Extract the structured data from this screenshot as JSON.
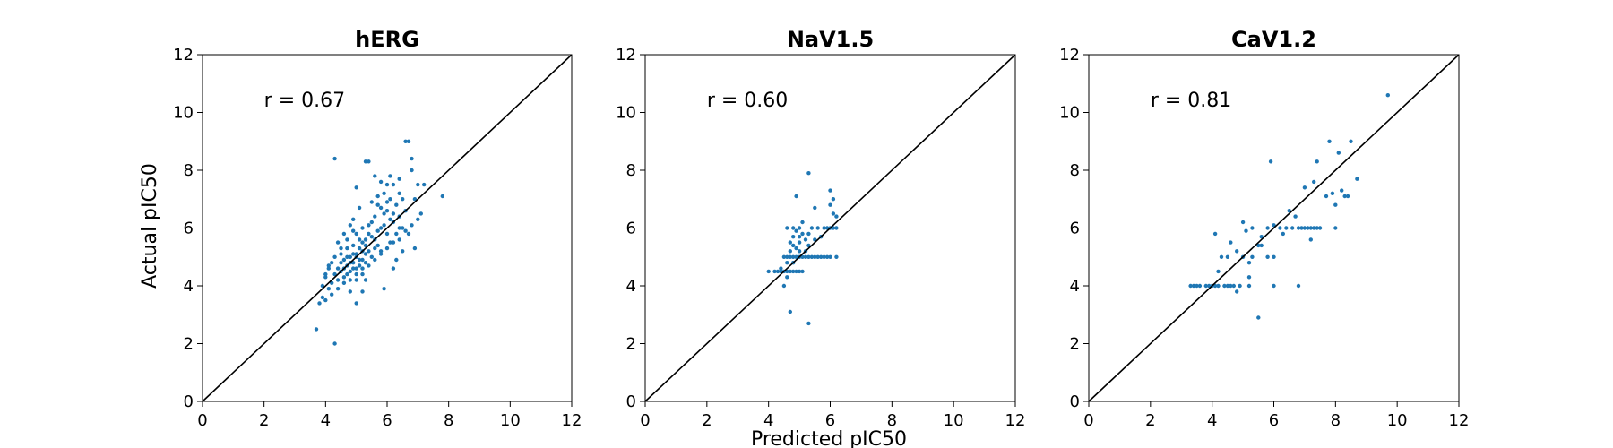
{
  "chart_data": {
    "type": "scatter",
    "shared": {
      "xlabel": "Predicted pIC50",
      "ylabel": "Actual pIC50",
      "xlim": [
        0,
        12
      ],
      "ylim": [
        0,
        12
      ],
      "xticks": [
        0,
        2,
        4,
        6,
        8,
        10,
        12
      ],
      "yticks": [
        0,
        2,
        4,
        6,
        8,
        10,
        12
      ],
      "point_color": "#1f77b4",
      "line_color": "#000000",
      "grid": false,
      "identity_line": true
    },
    "panels": [
      {
        "title": "hERG",
        "annotation": "r = 0.67",
        "annotation_pos": [
          2,
          10.2
        ],
        "points": [
          [
            3.7,
            2.5
          ],
          [
            4.3,
            2.0
          ],
          [
            4.3,
            8.4
          ],
          [
            3.8,
            3.4
          ],
          [
            3.9,
            3.6
          ],
          [
            4.0,
            3.5
          ],
          [
            4.1,
            3.9
          ],
          [
            4.0,
            4.3
          ],
          [
            4.2,
            4.1
          ],
          [
            4.1,
            4.6
          ],
          [
            4.3,
            4.4
          ],
          [
            4.4,
            4.6
          ],
          [
            4.2,
            4.8
          ],
          [
            4.5,
            4.5
          ],
          [
            4.4,
            4.2
          ],
          [
            4.6,
            4.9
          ],
          [
            4.5,
            5.1
          ],
          [
            4.6,
            4.3
          ],
          [
            4.7,
            4.7
          ],
          [
            4.7,
            5.3
          ],
          [
            4.8,
            4.5
          ],
          [
            4.8,
            5.0
          ],
          [
            4.9,
            4.8
          ],
          [
            4.9,
            5.4
          ],
          [
            5.0,
            4.6
          ],
          [
            5.0,
            5.1
          ],
          [
            5.1,
            5.6
          ],
          [
            5.1,
            4.9
          ],
          [
            5.2,
            5.2
          ],
          [
            5.2,
            6.0
          ],
          [
            5.3,
            5.4
          ],
          [
            5.3,
            4.8
          ],
          [
            5.4,
            5.8
          ],
          [
            5.4,
            5.2
          ],
          [
            5.5,
            6.2
          ],
          [
            5.5,
            5.0
          ],
          [
            5.6,
            5.6
          ],
          [
            5.6,
            6.4
          ],
          [
            5.7,
            5.4
          ],
          [
            5.7,
            6.8
          ],
          [
            5.8,
            6.0
          ],
          [
            5.8,
            5.2
          ],
          [
            5.9,
            6.5
          ],
          [
            5.9,
            7.2
          ],
          [
            6.0,
            5.8
          ],
          [
            6.0,
            6.6
          ],
          [
            6.1,
            7.0
          ],
          [
            6.1,
            5.5
          ],
          [
            6.2,
            6.2
          ],
          [
            6.2,
            7.5
          ],
          [
            6.3,
            6.8
          ],
          [
            6.3,
            5.8
          ],
          [
            6.4,
            7.7
          ],
          [
            6.4,
            6.4
          ],
          [
            6.5,
            7.0
          ],
          [
            6.5,
            6.0
          ],
          [
            6.6,
            9.0
          ],
          [
            6.7,
            9.0
          ],
          [
            6.8,
            8.4
          ],
          [
            6.8,
            8.0
          ],
          [
            6.9,
            7.0
          ],
          [
            6.9,
            5.3
          ],
          [
            7.0,
            7.5
          ],
          [
            7.1,
            6.5
          ],
          [
            7.2,
            7.5
          ],
          [
            7.8,
            7.1
          ],
          [
            4.4,
            5.5
          ],
          [
            4.6,
            5.8
          ],
          [
            4.8,
            6.1
          ],
          [
            4.9,
            6.3
          ],
          [
            5.0,
            3.4
          ],
          [
            5.2,
            3.8
          ],
          [
            5.3,
            4.2
          ],
          [
            5.0,
            7.4
          ],
          [
            5.3,
            8.3
          ],
          [
            5.4,
            8.3
          ],
          [
            5.6,
            7.8
          ],
          [
            5.8,
            7.6
          ],
          [
            6.0,
            7.5
          ],
          [
            5.9,
            3.9
          ],
          [
            6.2,
            4.6
          ],
          [
            6.3,
            4.9
          ],
          [
            6.5,
            5.2
          ],
          [
            6.7,
            5.8
          ],
          [
            6.6,
            6.6
          ],
          [
            6.4,
            7.2
          ],
          [
            6.1,
            7.8
          ],
          [
            5.7,
            7.1
          ],
          [
            5.5,
            6.9
          ],
          [
            5.1,
            6.7
          ],
          [
            4.9,
            5.9
          ],
          [
            4.7,
            5.6
          ],
          [
            4.5,
            5.3
          ],
          [
            4.3,
            5.0
          ],
          [
            4.1,
            4.7
          ],
          [
            4.0,
            4.4
          ],
          [
            3.9,
            4.0
          ],
          [
            4.2,
            3.7
          ],
          [
            4.4,
            3.9
          ],
          [
            4.6,
            4.1
          ],
          [
            4.8,
            4.2
          ],
          [
            5.0,
            4.4
          ],
          [
            5.2,
            4.6
          ],
          [
            5.4,
            4.7
          ],
          [
            5.6,
            4.9
          ],
          [
            5.8,
            5.1
          ],
          [
            6.0,
            5.3
          ],
          [
            6.2,
            5.5
          ],
          [
            6.4,
            5.6
          ],
          [
            6.6,
            5.9
          ],
          [
            6.8,
            6.1
          ],
          [
            7.0,
            6.3
          ],
          [
            5.0,
            5.8
          ],
          [
            5.2,
            5.5
          ],
          [
            5.4,
            6.1
          ],
          [
            5.6,
            5.3
          ],
          [
            5.8,
            6.7
          ],
          [
            6.0,
            6.9
          ],
          [
            6.2,
            6.5
          ],
          [
            6.4,
            6.0
          ],
          [
            4.6,
            4.6
          ],
          [
            4.7,
            4.4
          ],
          [
            4.8,
            4.8
          ],
          [
            4.9,
            4.6
          ],
          [
            5.0,
            5.0
          ],
          [
            5.1,
            4.7
          ],
          [
            5.2,
            4.9
          ],
          [
            5.3,
            5.1
          ],
          [
            4.5,
            4.8
          ],
          [
            4.7,
            5.0
          ],
          [
            4.9,
            5.1
          ],
          [
            5.1,
            5.3
          ],
          [
            5.3,
            5.6
          ],
          [
            5.5,
            5.7
          ],
          [
            5.7,
            5.9
          ],
          [
            5.9,
            6.1
          ],
          [
            6.1,
            6.3
          ],
          [
            5.0,
            4.2
          ],
          [
            5.2,
            4.4
          ],
          [
            4.8,
            3.8
          ]
        ]
      },
      {
        "title": "NaV1.5",
        "annotation": "r = 0.60",
        "annotation_pos": [
          2,
          10.2
        ],
        "points": [
          [
            4.0,
            4.5
          ],
          [
            4.2,
            4.5
          ],
          [
            4.3,
            4.5
          ],
          [
            4.4,
            4.5
          ],
          [
            4.5,
            4.5
          ],
          [
            4.6,
            4.5
          ],
          [
            4.7,
            4.5
          ],
          [
            4.8,
            4.5
          ],
          [
            4.9,
            4.5
          ],
          [
            5.0,
            4.5
          ],
          [
            5.1,
            4.5
          ],
          [
            4.5,
            5.0
          ],
          [
            4.6,
            5.0
          ],
          [
            4.7,
            5.0
          ],
          [
            4.8,
            5.0
          ],
          [
            4.9,
            5.0
          ],
          [
            5.0,
            5.0
          ],
          [
            5.1,
            5.0
          ],
          [
            5.2,
            5.0
          ],
          [
            5.3,
            5.0
          ],
          [
            5.4,
            5.0
          ],
          [
            5.5,
            5.0
          ],
          [
            5.6,
            5.0
          ],
          [
            5.7,
            5.0
          ],
          [
            5.8,
            5.0
          ],
          [
            5.9,
            5.0
          ],
          [
            6.0,
            5.0
          ],
          [
            6.2,
            5.0
          ],
          [
            4.6,
            6.0
          ],
          [
            4.8,
            6.0
          ],
          [
            5.0,
            6.0
          ],
          [
            5.4,
            6.0
          ],
          [
            5.6,
            6.0
          ],
          [
            5.8,
            6.0
          ],
          [
            5.9,
            6.0
          ],
          [
            6.0,
            6.0
          ],
          [
            6.1,
            6.0
          ],
          [
            6.2,
            6.0
          ],
          [
            4.7,
            5.5
          ],
          [
            4.8,
            5.7
          ],
          [
            4.9,
            5.3
          ],
          [
            5.0,
            5.5
          ],
          [
            5.1,
            5.8
          ],
          [
            5.2,
            5.2
          ],
          [
            5.3,
            5.4
          ],
          [
            4.6,
            4.8
          ],
          [
            4.7,
            5.2
          ],
          [
            4.8,
            4.8
          ],
          [
            5.0,
            5.2
          ],
          [
            4.7,
            3.1
          ],
          [
            5.3,
            2.7
          ],
          [
            4.9,
            7.1
          ],
          [
            5.3,
            7.9
          ],
          [
            6.0,
            7.3
          ],
          [
            6.1,
            7.0
          ],
          [
            6.0,
            6.8
          ],
          [
            6.1,
            6.5
          ],
          [
            6.2,
            6.4
          ],
          [
            5.5,
            6.7
          ],
          [
            4.5,
            4.0
          ],
          [
            4.4,
            4.6
          ],
          [
            4.6,
            4.3
          ],
          [
            4.8,
            5.4
          ],
          [
            5.0,
            5.7
          ],
          [
            5.2,
            5.6
          ],
          [
            4.9,
            5.9
          ],
          [
            5.1,
            6.2
          ],
          [
            5.3,
            5.8
          ],
          [
            5.5,
            5.6
          ],
          [
            5.7,
            5.7
          ]
        ]
      },
      {
        "title": "CaV1.2",
        "annotation": "r = 0.81",
        "annotation_pos": [
          2,
          10.2
        ],
        "points": [
          [
            3.3,
            4.0
          ],
          [
            3.4,
            4.0
          ],
          [
            3.5,
            4.0
          ],
          [
            3.6,
            4.0
          ],
          [
            3.8,
            4.0
          ],
          [
            3.9,
            4.0
          ],
          [
            4.0,
            4.0
          ],
          [
            4.1,
            4.0
          ],
          [
            4.2,
            4.0
          ],
          [
            4.4,
            4.0
          ],
          [
            4.5,
            4.0
          ],
          [
            4.6,
            4.0
          ],
          [
            4.7,
            4.0
          ],
          [
            4.9,
            4.0
          ],
          [
            5.2,
            4.0
          ],
          [
            6.0,
            4.0
          ],
          [
            6.8,
            4.0
          ],
          [
            5.5,
            2.9
          ],
          [
            4.8,
            3.8
          ],
          [
            5.2,
            4.3
          ],
          [
            4.2,
            4.5
          ],
          [
            4.3,
            5.0
          ],
          [
            4.5,
            5.0
          ],
          [
            4.8,
            5.2
          ],
          [
            5.0,
            5.0
          ],
          [
            5.3,
            5.0
          ],
          [
            5.8,
            5.0
          ],
          [
            6.0,
            5.0
          ],
          [
            4.1,
            5.8
          ],
          [
            5.0,
            6.2
          ],
          [
            5.1,
            5.9
          ],
          [
            5.3,
            6.0
          ],
          [
            5.6,
            5.4
          ],
          [
            5.8,
            6.0
          ],
          [
            6.0,
            6.1
          ],
          [
            6.2,
            6.0
          ],
          [
            6.4,
            6.0
          ],
          [
            6.6,
            6.0
          ],
          [
            6.8,
            6.0
          ],
          [
            6.9,
            6.0
          ],
          [
            7.0,
            6.0
          ],
          [
            7.1,
            6.0
          ],
          [
            7.2,
            6.0
          ],
          [
            7.3,
            6.0
          ],
          [
            7.4,
            6.0
          ],
          [
            7.5,
            6.0
          ],
          [
            8.0,
            6.0
          ],
          [
            7.0,
            7.4
          ],
          [
            7.3,
            7.6
          ],
          [
            7.4,
            8.3
          ],
          [
            7.7,
            7.1
          ],
          [
            7.9,
            7.2
          ],
          [
            7.8,
            9.0
          ],
          [
            8.1,
            8.6
          ],
          [
            8.2,
            7.3
          ],
          [
            8.3,
            7.1
          ],
          [
            8.4,
            7.1
          ],
          [
            8.5,
            9.0
          ],
          [
            8.7,
            7.7
          ],
          [
            9.7,
            10.6
          ],
          [
            5.9,
            8.3
          ],
          [
            5.6,
            5.7
          ],
          [
            6.5,
            6.6
          ],
          [
            5.5,
            5.4
          ],
          [
            5.2,
            4.8
          ],
          [
            7.2,
            5.6
          ],
          [
            8.0,
            6.8
          ],
          [
            4.6,
            5.5
          ],
          [
            6.3,
            5.8
          ],
          [
            6.7,
            6.4
          ]
        ]
      }
    ]
  }
}
